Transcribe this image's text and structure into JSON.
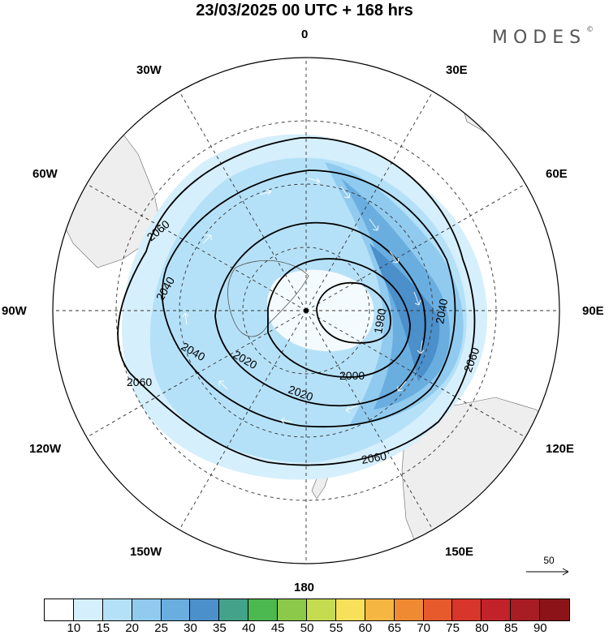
{
  "title": "23/03/2025  00 UTC  + 168 hrs",
  "brand": {
    "name": "MODES",
    "mark": "©"
  },
  "longitude_labels": {
    "lon0": "0",
    "lon30e": "30E",
    "lon60e": "60E",
    "lon90e": "90E",
    "lon120e": "120E",
    "lon150e": "150E",
    "lon180": "180",
    "lon150w": "150W",
    "lon120w": "120W",
    "lon90w": "90W",
    "lon60w": "60W",
    "lon30w": "30W"
  },
  "contour_labels": {
    "c1": "2060",
    "c2": "2040",
    "c3": "2040",
    "c4": "2020",
    "c5": "2060",
    "c6": "2020",
    "c7": "2000",
    "c8": "1980",
    "c9": "2040",
    "c10": "2060",
    "c11": "2060"
  },
  "reference_vector": {
    "value": "50"
  },
  "colorbar": {
    "colors": [
      "#ffffff",
      "#d6effc",
      "#b5e1f8",
      "#90cbef",
      "#6aaee0",
      "#4b8fcb",
      "#43a28a",
      "#4cb850",
      "#8cc84a",
      "#c6dc50",
      "#f7e05a",
      "#f5b642",
      "#f08a32",
      "#e65a2c",
      "#d8362a",
      "#c22229",
      "#a81c24",
      "#8c1418"
    ],
    "ticks": [
      "10",
      "15",
      "20",
      "25",
      "30",
      "35",
      "40",
      "45",
      "50",
      "55",
      "60",
      "65",
      "70",
      "75",
      "80",
      "85",
      "90"
    ]
  }
}
